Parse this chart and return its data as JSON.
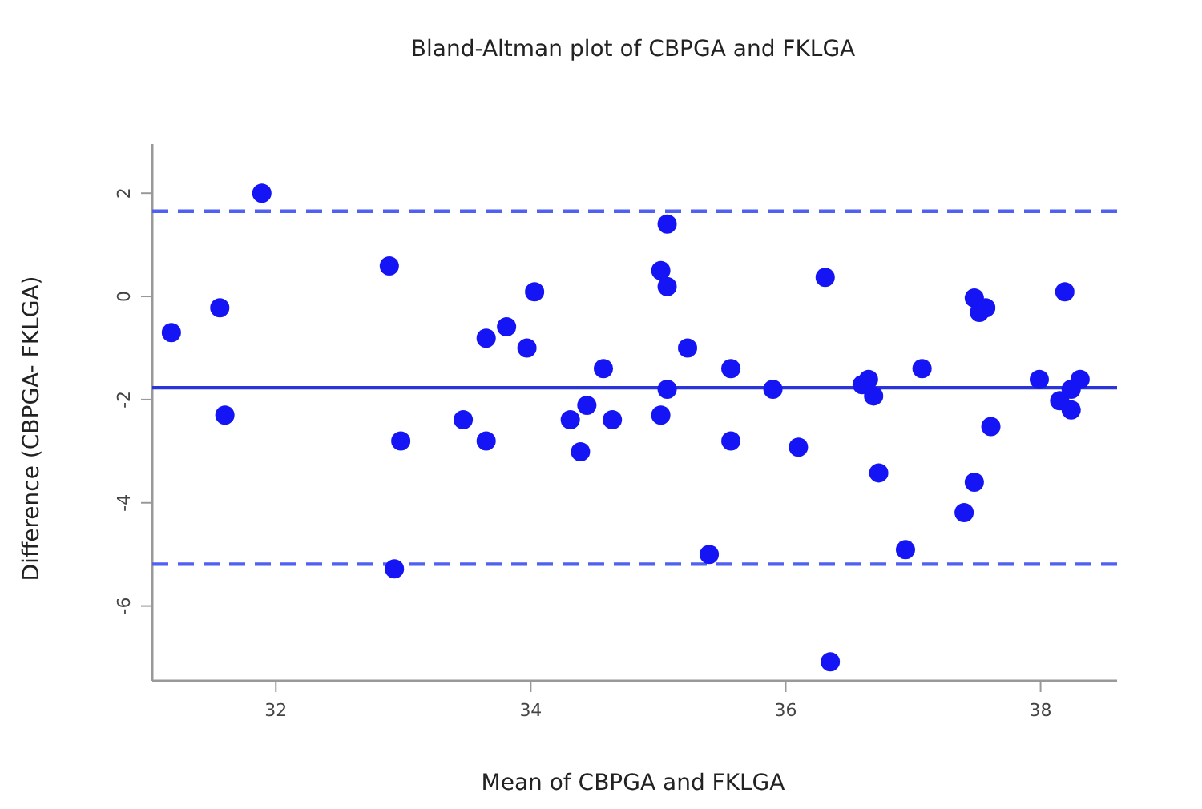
{
  "chart_data": {
    "type": "scatter",
    "title": "Bland-Altman plot of CBPGA and FKLGA",
    "xlabel": "Mean of CBPGA and FKLGA",
    "ylabel": "Difference (CBPGA- FKLGA)",
    "xlim": [
      31.03,
      38.6
    ],
    "xticks": [
      32,
      34,
      36,
      38
    ],
    "ylim": [
      -7.45,
      2.95
    ],
    "yticks": [
      -6,
      -4,
      -2,
      0,
      2
    ],
    "grid": false,
    "marker": "circle",
    "series": [
      {
        "color": "#1414f5",
        "x": [
          31.18,
          31.56,
          31.6,
          31.89,
          32.89,
          32.98,
          32.93,
          33.47,
          33.65,
          33.65,
          33.81,
          33.97,
          34.03,
          34.31,
          34.39,
          34.44,
          34.57,
          34.64,
          35.07,
          35.02,
          35.07,
          35.23,
          35.07,
          35.02,
          35.4,
          35.57,
          35.57,
          35.9,
          36.1,
          36.31,
          36.35,
          36.6,
          36.65,
          36.69,
          36.73,
          36.94,
          37.07,
          37.4,
          37.48,
          37.48,
          37.52,
          37.57,
          37.61,
          37.99,
          38.19,
          38.15,
          38.24,
          38.24,
          38.31
        ],
        "values": [
          -0.7,
          -0.22,
          -2.3,
          2.0,
          0.59,
          -2.8,
          -5.28,
          -2.39,
          -0.81,
          -2.8,
          -0.59,
          -1.0,
          0.09,
          -2.39,
          -3.01,
          -2.11,
          -1.4,
          -2.39,
          1.4,
          0.5,
          0.19,
          -1.0,
          -1.8,
          -2.3,
          -5.0,
          -1.4,
          -2.8,
          -1.8,
          -2.92,
          0.37,
          -7.08,
          -1.71,
          -1.61,
          -1.93,
          -3.42,
          -4.91,
          -1.4,
          -4.19,
          -3.6,
          -0.03,
          -0.31,
          -0.22,
          -2.52,
          -1.61,
          0.09,
          -2.02,
          -1.8,
          -2.2,
          -1.61
        ]
      }
    ],
    "ref_lines": [
      {
        "axis": "y",
        "value": 1.65,
        "line_style": "dashed",
        "color": "#5060f0"
      },
      {
        "axis": "y",
        "value": -1.77,
        "line_style": "solid",
        "color": "#2a35d8"
      },
      {
        "axis": "y",
        "value": -5.19,
        "line_style": "dashed",
        "color": "#5060f0"
      }
    ]
  }
}
